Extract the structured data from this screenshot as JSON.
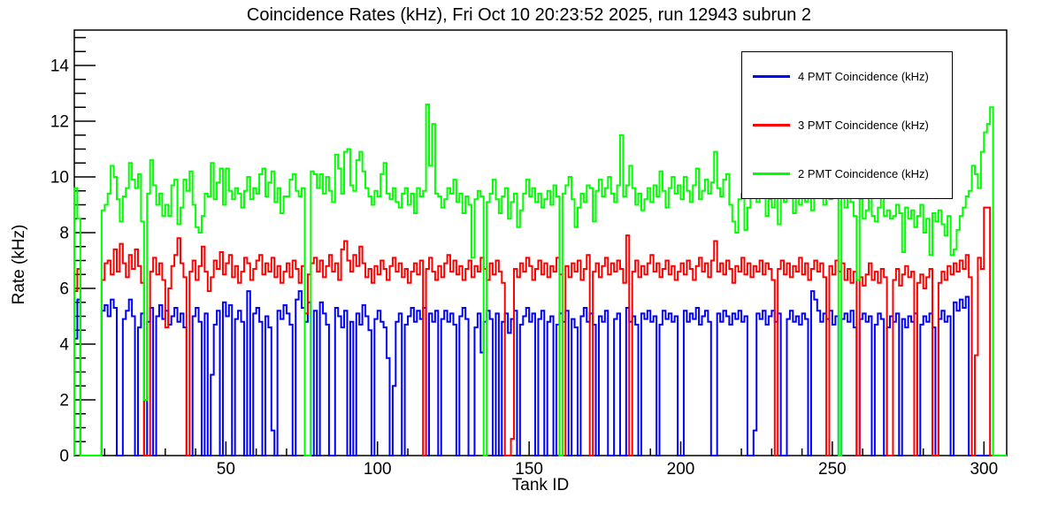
{
  "chart_data": {
    "type": "line",
    "style": "step-histogram",
    "title": "Coincidence Rates (kHz), Fri Oct 10 20:23:52 2025, run 12943 subrun 2",
    "xlabel": "Tank ID",
    "ylabel": "Rate (kHz)",
    "xlim": [
      0,
      307.5
    ],
    "ylim": [
      0,
      15.27
    ],
    "xticks": {
      "major_step": 50,
      "minor_step": 10,
      "label_max": 300
    },
    "yticks": {
      "major_step": 2,
      "minor_step": 0.5,
      "label_max": 14
    },
    "bin_width": 1,
    "x_start": 0,
    "grid": false,
    "legend_position": "top-right",
    "series": [
      {
        "name": "4 PMT Coincidence (kHz)",
        "color": "#0000ff",
        "values": [
          4.2,
          5.6,
          0,
          0,
          0,
          0,
          0,
          0,
          0,
          5.2,
          5.4,
          5.0,
          5.6,
          5.3,
          0,
          0,
          4.9,
          5.2,
          5.6,
          5.0,
          0,
          4.6,
          5.1,
          0,
          4.8,
          5.3,
          0,
          5.0,
          5.4,
          4.9,
          5.2,
          4.7,
          5.0,
          5.3,
          4.8,
          5.1,
          4.6,
          0,
          0,
          5.0,
          5.3,
          4.8,
          0,
          5.1,
          0,
          2.9,
          4.7,
          5.2,
          0,
          5.5,
          5.0,
          5.4,
          0,
          4.9,
          5.2,
          4.8,
          0,
          5.9,
          0,
          5.1,
          5.3,
          4.8,
          0,
          5.0,
          4.6,
          0.9,
          0,
          5.2,
          4.9,
          5.4,
          5.1,
          4.7,
          0,
          5.6,
          5.9,
          5.3,
          4.8,
          5.5,
          0,
          5.2,
          0,
          5.5,
          5.1,
          4.7,
          0,
          0,
          5.3,
          5.0,
          4.6,
          5.2,
          0,
          4.8,
          0,
          5.1,
          4.7,
          5.4,
          5.0,
          4.5,
          0,
          4.9,
          5.2,
          4.8,
          4.6,
          3.5,
          0,
          2.5,
          4.8,
          5.1,
          0,
          4.7,
          5.0,
          5.3,
          4.8,
          5.2,
          4.9,
          5.3,
          0,
          5.1,
          4.8,
          5.2,
          0,
          4.9,
          5.2,
          4.8,
          5.1,
          4.7,
          0,
          5.0,
          5.3,
          4.9,
          0,
          0,
          4.6,
          5.1,
          3.7,
          4.8,
          5.2,
          4.9,
          0,
          5.1,
          0,
          4.8,
          5.1,
          4.4,
          4.9,
          5.2,
          0,
          4.7,
          5.0,
          5.3,
          4.8,
          5.1,
          0,
          4.9,
          5.2,
          0,
          4.8,
          5.0,
          0,
          4.7,
          5.1,
          4.8,
          5.2,
          0,
          4.9,
          4.6,
          0,
          5.0,
          5.3,
          4.8,
          5.1,
          4.7,
          0,
          5.0,
          4.8,
          5.2,
          0,
          0,
          4.9,
          5.1,
          0,
          0,
          5.3,
          4.8,
          5.0,
          4.7,
          0,
          5.1,
          4.9,
          5.2,
          4.8,
          5.0,
          0,
          4.7,
          5.2,
          4.9,
          5.1,
          4.8,
          5.0,
          0,
          0,
          5.2,
          4.8,
          5.1,
          4.9,
          5.3,
          4.7,
          5.0,
          5.2,
          4.8,
          0,
          0,
          5.1,
          4.8,
          5.2,
          5.0,
          4.7,
          5.1,
          4.9,
          5.2,
          4.8,
          5.0,
          0,
          0,
          0.9,
          5.1,
          4.9,
          5.2,
          4.7,
          5.0,
          5.2,
          4.8,
          5.1,
          0,
          0,
          4.9,
          5.2,
          4.8,
          5.0,
          4.7,
          5.1,
          4.9,
          0,
          5.9,
          5.6,
          5.2,
          4.8,
          5.1,
          4.9,
          5.2,
          4.7,
          5.0,
          0,
          4.9,
          5.1,
          4.8,
          5.2,
          4.6,
          0,
          4.9,
          5.1,
          4.8,
          5.0,
          0,
          4.7,
          5.1,
          4.9,
          0,
          4.6,
          5.0,
          4.8,
          5.1,
          0,
          4.9,
          4.6,
          5.0,
          4.8,
          5.1,
          0,
          4.7,
          5.0,
          4.8,
          5.1,
          4.6,
          0,
          4.9,
          5.2,
          4.8,
          5.0,
          0,
          5.5,
          5.2,
          5.6,
          5.3,
          5.7,
          0,
          0,
          0,
          0,
          0,
          0,
          0,
          0,
          0,
          0
        ]
      },
      {
        "name": "3 PMT Coincidence (kHz)",
        "color": "#ff0000",
        "values": [
          5.9,
          6.7,
          0,
          0,
          0,
          0,
          0,
          0,
          0,
          6.3,
          6.9,
          7.0,
          6.5,
          7.4,
          6.6,
          7.6,
          6.9,
          6.4,
          7.2,
          6.7,
          7.4,
          6.8,
          6.2,
          0,
          0,
          6.6,
          7.1,
          6.5,
          6.9,
          6.3,
          4.6,
          6.0,
          6.8,
          7.2,
          7.8,
          6.9,
          6.4,
          0,
          6.6,
          7.0,
          6.3,
          6.8,
          7.5,
          6.6,
          5.9,
          6.4,
          7.0,
          6.7,
          7.3,
          6.5,
          6.9,
          7.2,
          6.4,
          6.8,
          6.2,
          6.6,
          7.1,
          6.9,
          6.3,
          6.7,
          7.0,
          7.2,
          6.5,
          6.9,
          6.6,
          7.1,
          6.4,
          6.8,
          6.2,
          6.6,
          6.9,
          6.4,
          7.0,
          6.7,
          6.2,
          6.8,
          5.1,
          6.5,
          6.9,
          7.1,
          6.6,
          7.0,
          6.4,
          6.8,
          7.2,
          6.6,
          6.9,
          6.3,
          7.4,
          7.7,
          7.0,
          6.6,
          7.2,
          6.8,
          7.5,
          6.9,
          6.4,
          6.7,
          6.2,
          6.8,
          6.5,
          7.0,
          6.7,
          6.3,
          6.8,
          7.1,
          6.6,
          6.9,
          6.4,
          6.7,
          6.2,
          6.6,
          6.9,
          6.5,
          7.0,
          0,
          6.7,
          7.1,
          6.6,
          6.3,
          6.8,
          6.4,
          6.9,
          7.2,
          6.6,
          7.0,
          6.5,
          6.8,
          6.3,
          6.7,
          7.0,
          6.4,
          6.8,
          6.6,
          7.1,
          6.7,
          6.3,
          6.9,
          6.5,
          7.0,
          6.6,
          6.2,
          0,
          0,
          0.6,
          6.7,
          6.4,
          6.9,
          6.6,
          7.1,
          6.8,
          6.3,
          6.7,
          7.0,
          6.5,
          6.9,
          6.4,
          6.8,
          6.6,
          7.1,
          6.5,
          0,
          6.8,
          6.4,
          6.9,
          6.6,
          7.0,
          6.3,
          6.7,
          7.2,
          0,
          6.6,
          6.9,
          6.4,
          6.8,
          7.1,
          6.5,
          6.9,
          6.6,
          7.0,
          6.7,
          6.2,
          7.9,
          0,
          6.6,
          7.0,
          6.4,
          6.8,
          6.5,
          6.9,
          7.2,
          6.6,
          6.9,
          6.4,
          6.7,
          7.0,
          6.5,
          6.8,
          6.3,
          6.6,
          6.9,
          6.5,
          7.0,
          6.7,
          6.3,
          6.8,
          7.1,
          6.6,
          6.9,
          6.4,
          7.0,
          7.7,
          6.6,
          6.9,
          6.5,
          7.0,
          6.7,
          6.2,
          6.8,
          6.6,
          7.1,
          6.5,
          6.9,
          6.4,
          6.8,
          6.6,
          7.0,
          6.5,
          6.9,
          6.7,
          6.3,
          0,
          6.7,
          7.0,
          6.5,
          6.9,
          6.4,
          6.8,
          6.6,
          7.1,
          6.5,
          6.9,
          6.3,
          6.7,
          7.0,
          6.6,
          6.9,
          6.4,
          0,
          6.8,
          6.5,
          7.0,
          6.6,
          6.9,
          6.3,
          6.7,
          6.2,
          6.6,
          0,
          6.4,
          6.1,
          6.5,
          6.9,
          6.3,
          6.6,
          6.2,
          6.7,
          6.4,
          0,
          0,
          6.3,
          6.7,
          6.1,
          6.5,
          6.8,
          6.4,
          6.6,
          0,
          6.2,
          6.5,
          6.0,
          6.4,
          6.7,
          0,
          0,
          6.2,
          6.6,
          6.3,
          6.8,
          6.5,
          6.9,
          6.6,
          7.0,
          6.7,
          7.2,
          6.4,
          0,
          3.6,
          7.1,
          6.7,
          8.9,
          8.9,
          0,
          0,
          0
        ]
      },
      {
        "name": "2 PMT Coincidence (kHz)",
        "color": "#00ff00",
        "values": [
          9.6,
          8.5,
          0,
          0,
          0,
          0,
          0,
          0,
          0,
          8.8,
          9.0,
          9.4,
          10.4,
          10.0,
          9.2,
          8.4,
          9.3,
          9.6,
          10.5,
          9.9,
          9.6,
          10.1,
          8.4,
          2.0,
          9.4,
          10.6,
          9.7,
          9.0,
          9.4,
          8.6,
          9.0,
          8.6,
          9.7,
          9.9,
          8.3,
          8.9,
          9.9,
          9.5,
          10.2,
          9.0,
          8.2,
          8.0,
          8.6,
          9.4,
          9.3,
          10.5,
          9.2,
          9.8,
          10.3,
          9.0,
          10.3,
          9.5,
          9.2,
          9.6,
          9.4,
          8.9,
          9.5,
          10.0,
          9.2,
          9.6,
          9.4,
          10.1,
          10.3,
          9.3,
          9.8,
          10.2,
          9.1,
          9.6,
          8.7,
          9.3,
          9.3,
          9.9,
          10.1,
          9.5,
          9.3,
          9.6,
          0,
          0,
          10.2,
          10.1,
          9.6,
          10.1,
          9.4,
          10.0,
          9.5,
          9.1,
          10.8,
          10.3,
          9.4,
          10.9,
          11.0,
          9.7,
          9.5,
          10.6,
          10.9,
          10.2,
          9.6,
          9.3,
          9.0,
          9.5,
          9.3,
          10.1,
          10.5,
          9.4,
          9.2,
          9.6,
          9.1,
          8.9,
          9.4,
          9.6,
          9.0,
          9.4,
          8.7,
          9.6,
          9.3,
          9.5,
          12.6,
          10.4,
          11.9,
          9.4,
          9.3,
          8.9,
          9.2,
          9.6,
          9.4,
          9.9,
          9.1,
          9.4,
          8.7,
          9.3,
          9.0,
          7.1,
          9.2,
          9.5,
          9.3,
          0,
          9.1,
          9.4,
          9.9,
          9.2,
          8.7,
          9.3,
          9.6,
          8.5,
          9.1,
          9.4,
          8.2,
          8.8,
          9.4,
          9.9,
          9.3,
          9.6,
          9.1,
          9.4,
          8.9,
          9.2,
          9.5,
          9.0,
          9.7,
          9.3,
          0,
          9.4,
          9.7,
          10.0,
          9.2,
          8.2,
          8.9,
          9.4,
          9.1,
          9.7,
          9.6,
          8.4,
          9.5,
          9.9,
          9.3,
          9.6,
          10.0,
          9.4,
          9.1,
          9.7,
          11.5,
          9.3,
          9.7,
          10.4,
          9.6,
          9.0,
          9.4,
          8.8,
          9.2,
          9.6,
          9.1,
          9.7,
          9.3,
          10.2,
          9.5,
          8.9,
          9.6,
          10.0,
          9.4,
          9.7,
          9.2,
          10.0,
          9.5,
          9.1,
          9.7,
          10.3,
          9.2,
          9.5,
          9.9,
          9.4,
          9.8,
          10.9,
          9.6,
          9.3,
          9.9,
          10.1,
          9.0,
          8.4,
          8.0,
          9.2,
          9.4,
          8.1,
          8.9,
          9.3,
          9.7,
          9.1,
          10.1,
          9.5,
          8.6,
          9.2,
          8.9,
          9.4,
          8.3,
          9.6,
          9.1,
          9.8,
          9.3,
          8.7,
          9.4,
          9.0,
          9.5,
          9.1,
          9.6,
          8.8,
          9.3,
          9.9,
          9.4,
          9.0,
          9.5,
          9.2,
          9.3,
          9.7,
          0,
          9.4,
          8.9,
          9.5,
          9.1,
          8.6,
          6.3,
          9.2,
          8.5,
          8.8,
          9.4,
          8.6,
          8.4,
          8.9,
          9.3,
          8.6,
          8.8,
          8.5,
          8.6,
          9.0,
          8.7,
          7.3,
          8.9,
          8.5,
          8.8,
          8.2,
          8.6,
          9.0,
          8.0,
          8.5,
          7.2,
          8.7,
          8.4,
          8.8,
          8.3,
          7.9,
          8.6,
          7.2,
          7.4,
          8.1,
          8.6,
          8.9,
          9.3,
          9.5,
          10.4,
          10.1,
          9.6,
          10.9,
          11.6,
          11.9,
          12.5,
          0,
          0
        ]
      }
    ]
  }
}
